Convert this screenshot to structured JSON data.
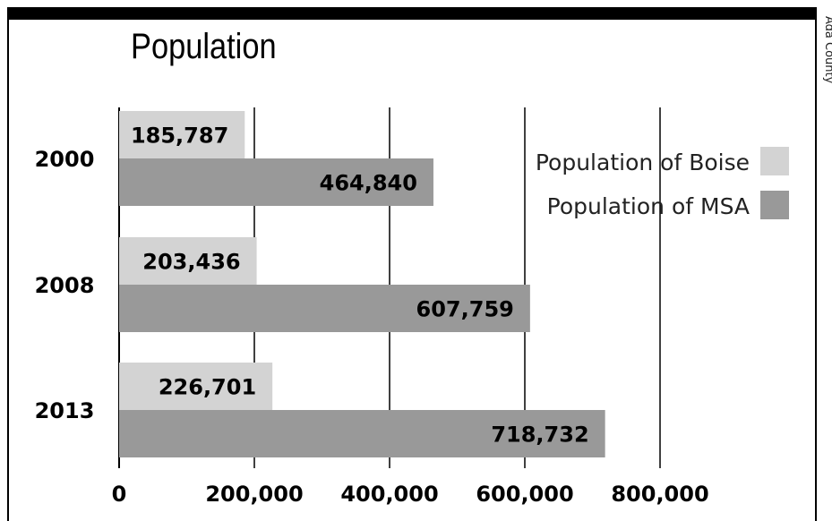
{
  "side_label": "Ada County",
  "chart_data": {
    "type": "bar",
    "orientation": "horizontal",
    "title": "Population",
    "xlabel": "",
    "ylabel": "",
    "categories": [
      "2000",
      "2008",
      "2013"
    ],
    "series": [
      {
        "name": "Population of Boise",
        "values": [
          185787,
          203436,
          226701
        ],
        "labels": [
          "185,787",
          "203,436",
          "226,701"
        ],
        "color": "#d3d3d3"
      },
      {
        "name": "Population of MSA",
        "values": [
          464840,
          607759,
          718732
        ],
        "labels": [
          "464,840",
          "607,759",
          "718,732"
        ],
        "color": "#999999"
      }
    ],
    "xlim": [
      0,
      800000
    ],
    "xticks": [
      0,
      200000,
      400000,
      600000,
      800000
    ],
    "xtick_labels": [
      "0",
      "200,000",
      "400,000",
      "600,000",
      "800,000"
    ],
    "grid": true,
    "legend_position": "top-right"
  }
}
